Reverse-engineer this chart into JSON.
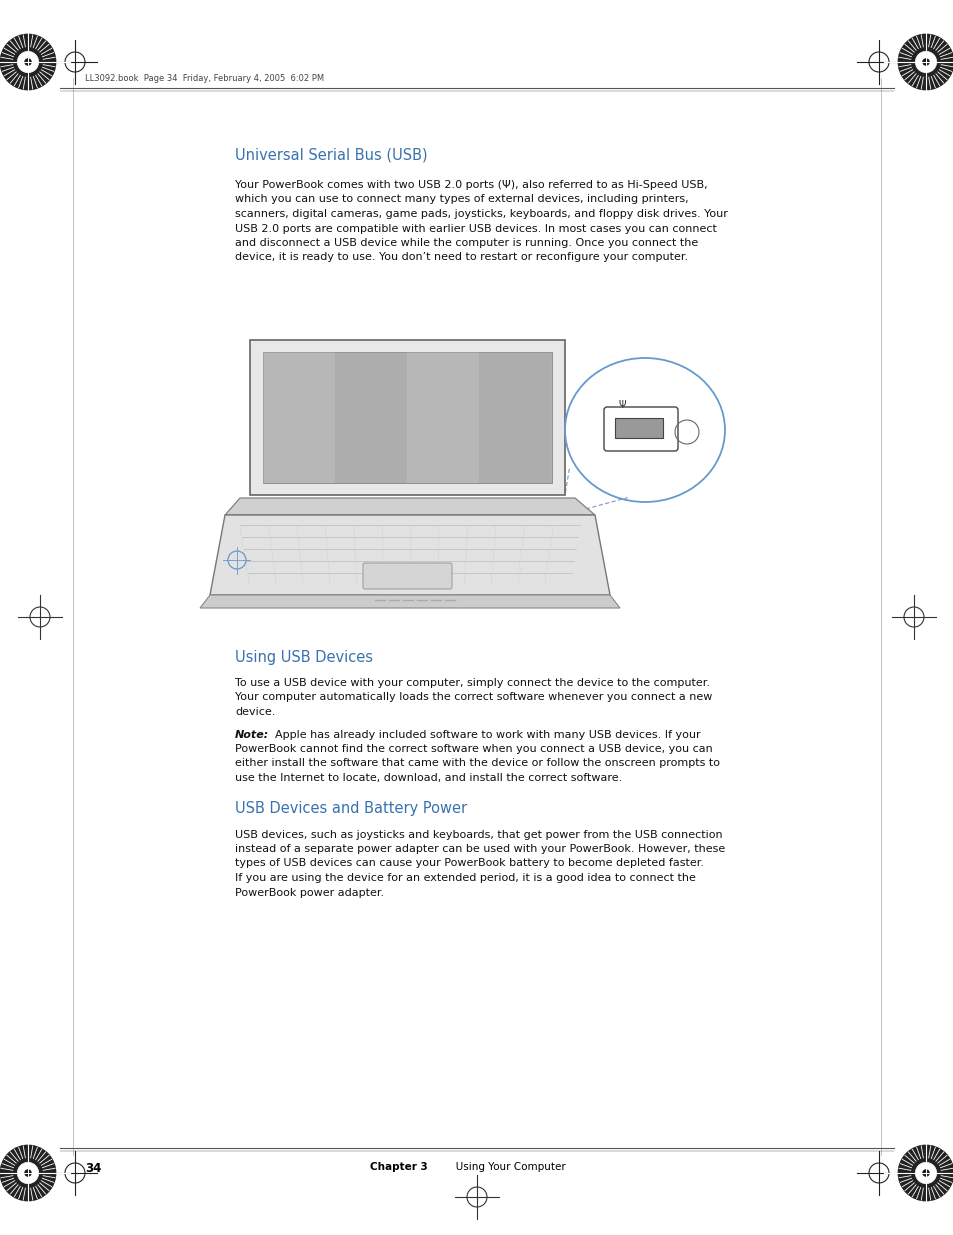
{
  "page_bg": "#ffffff",
  "header_text": "LL3092.book  Page 34  Friday, February 4, 2005  6:02 PM",
  "page_number": "34",
  "footer_chapter": "Chapter 3    Using Your Computer",
  "title1": "Universal Serial Bus (USB)",
  "title1_color": "#3872b0",
  "para1_line1": "Your PowerBook comes with two USB 2.0 ports (Ψ), also referred to as Hi-Speed USB,",
  "para1_line2": "which you can use to connect many types of external devices, including printers,",
  "para1_line3": "scanners, digital cameras, game pads, joysticks, keyboards, and floppy disk drives. Your",
  "para1_line4": "USB 2.0 ports are compatible with earlier USB devices. In most cases you can connect",
  "para1_line5": "and disconnect a USB device while the computer is running. Once you connect the",
  "para1_line6": "device, it is ready to use. You don’t need to restart or reconfigure your computer.",
  "title2": "Using USB Devices",
  "title2_color": "#3872b0",
  "para2_line1": "To use a USB device with your computer, simply connect the device to the computer.",
  "para2_line2": "Your computer automatically loads the correct software whenever you connect a new",
  "para2_line3": "device.",
  "note_bold": "Note:",
  "note_rest": "  Apple has already included software to work with many USB devices. If your",
  "note_line2": "PowerBook cannot find the correct software when you connect a USB device, you can",
  "note_line3": "either install the software that came with the device or follow the onscreen prompts to",
  "note_line4": "use the Internet to locate, download, and install the correct software.",
  "title3": "USB Devices and Battery Power",
  "title3_color": "#3872b0",
  "para3_line1": "USB devices, such as joysticks and keyboards, that get power from the USB connection",
  "para3_line2": "instead of a separate power adapter can be used with your PowerBook. However, these",
  "para3_line3": "types of USB devices can cause your PowerBook battery to become depleted faster.",
  "para3_line4": "If you are using the device for an extended period, it is a good idea to connect the",
  "para3_line5": "PowerBook power adapter.",
  "text_color": "#111111",
  "text_fontsize": 8.0,
  "title_fontsize": 10.5,
  "footer_chapter_color": "#3872b0"
}
